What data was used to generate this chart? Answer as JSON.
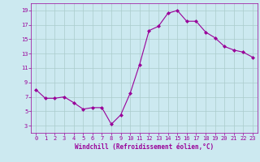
{
  "x": [
    0,
    1,
    2,
    3,
    4,
    5,
    6,
    7,
    8,
    9,
    10,
    11,
    12,
    13,
    14,
    15,
    16,
    17,
    18,
    19,
    20,
    21,
    22,
    23
  ],
  "y": [
    8.0,
    6.8,
    6.8,
    7.0,
    6.2,
    5.3,
    5.5,
    5.5,
    3.2,
    4.5,
    7.5,
    11.5,
    16.2,
    16.8,
    18.6,
    19.0,
    17.5,
    17.5,
    16.0,
    15.2,
    14.0,
    13.5,
    13.2,
    12.5
  ],
  "line_color": "#990099",
  "marker": "D",
  "marker_size": 2,
  "bg_color": "#cce9f0",
  "grid_color": "#aacccc",
  "xlabel": "Windchill (Refroidissement éolien,°C)",
  "xlabel_color": "#990099",
  "tick_color": "#990099",
  "ylim": [
    2,
    20
  ],
  "xlim": [
    -0.5,
    23.5
  ],
  "yticks": [
    3,
    5,
    7,
    9,
    11,
    13,
    15,
    17,
    19
  ],
  "xticks": [
    0,
    1,
    2,
    3,
    4,
    5,
    6,
    7,
    8,
    9,
    10,
    11,
    12,
    13,
    14,
    15,
    16,
    17,
    18,
    19,
    20,
    21,
    22,
    23
  ]
}
